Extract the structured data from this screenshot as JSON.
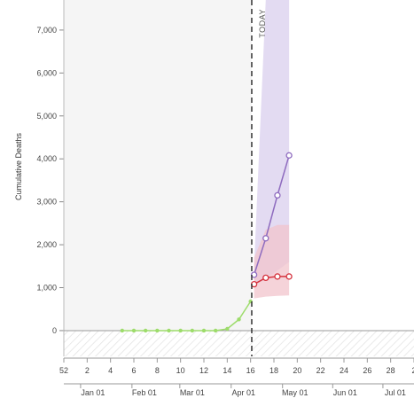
{
  "chart_data": {
    "type": "line",
    "ylabel": "Cumulative Deaths",
    "xlabel": "",
    "ylim": [
      -600,
      7700
    ],
    "y_ticks": [
      0,
      1000,
      2000,
      3000,
      4000,
      5000,
      6000,
      7000
    ],
    "y_tick_labels": [
      "0",
      "1,000",
      "2,000",
      "3,000",
      "4,000",
      "5,000",
      "6,000",
      "7,000"
    ],
    "x_range_days": [
      -10,
      20
    ],
    "x_ticks_weeks": [
      -10,
      -8,
      -6,
      -4,
      -2,
      0,
      2,
      4,
      6,
      8,
      10,
      12,
      14,
      16,
      18,
      20,
      22,
      24,
      26,
      28,
      30
    ],
    "x_tick_labels_weeks": [
      "52",
      "2",
      "4",
      "6",
      "8",
      "10",
      "12",
      "14",
      "16",
      "18",
      "20",
      "22",
      "24",
      "26",
      "28",
      "2"
    ],
    "x_week_positions": [
      -10,
      -8,
      -6,
      -4,
      -2,
      0,
      2,
      4,
      6,
      8,
      10,
      12,
      14,
      16,
      18,
      20
    ],
    "months": [
      "Jan 01",
      "Feb 01",
      "Mar 01",
      "Apr 01",
      "May 01",
      "Jun 01",
      "Jul 01"
    ],
    "month_positions": [
      -7.5,
      -3.1,
      1,
      5.4,
      9.8,
      14.1,
      18.4
    ],
    "today_label": "TODAY",
    "today_x": 6.1,
    "series": [
      {
        "name": "",
        "color": "#9ddc6b",
        "x": [
          -5,
          -4,
          -3,
          -2,
          -1,
          0,
          1,
          2,
          3,
          4,
          5,
          6
        ],
        "y": [
          0,
          0,
          0,
          0,
          0,
          0,
          0,
          0,
          0,
          40,
          260,
          680
        ]
      },
      {
        "name": "",
        "color": "#8e6bbf",
        "band_color": "#d9cfee",
        "x": [
          6.3,
          7.3,
          8.3,
          9.3
        ],
        "y": [
          1300,
          2150,
          3150,
          4080
        ],
        "band_lower": [
          1050,
          1200,
          1400,
          1600
        ],
        "band_upper": [
          1500,
          7700,
          7700,
          7700
        ]
      },
      {
        "name": "",
        "color": "#d5323e",
        "band_color": "#f2c4cc",
        "x": [
          6.3,
          7.3,
          8.3,
          9.3
        ],
        "y": [
          1080,
          1230,
          1260,
          1260
        ],
        "band_lower": [
          750,
          790,
          810,
          820
        ],
        "band_upper": [
          1700,
          2350,
          2460,
          2460
        ]
      }
    ]
  }
}
